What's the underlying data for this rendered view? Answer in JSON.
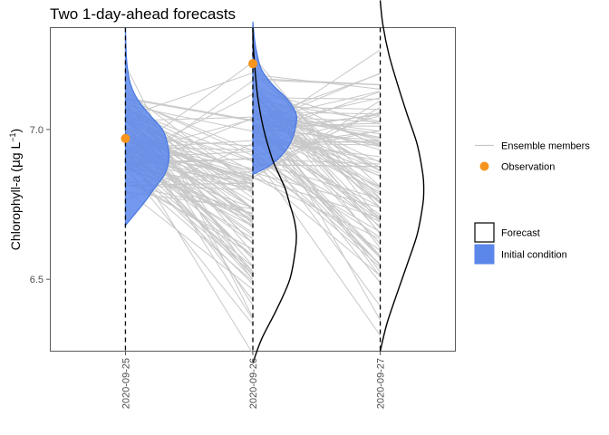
{
  "chart_data": {
    "type": "line",
    "title": "Two 1-day-ahead forecasts",
    "xlabel": "",
    "ylabel": "Chlorophyll-a (µg L⁻¹)",
    "ylabel_parts": {
      "main": "Chlorophyll-a (",
      "mu": "µ",
      "unit": "g L",
      "exp": "−1",
      "close": ")"
    },
    "x": [
      "2020-09-25",
      "2020-09-26",
      "2020-09-27"
    ],
    "ylim": [
      6.26,
      7.34
    ],
    "xlim": [
      -0.59,
      2.59
    ],
    "yticks": [
      6.5,
      7.0
    ],
    "ytick_labels": [
      "6.5",
      "7.0"
    ],
    "grid": false,
    "legend_position": "right",
    "colors": {
      "ensemble": "#c8c8c8",
      "observation": "#f7941d",
      "initial_condition": "#5b86ea",
      "initial_condition_edge": "#4a7ae0",
      "forecast": "#000000",
      "dashed": "#000000"
    },
    "legend": {
      "ensemble": "Ensemble members",
      "observation": "Observation",
      "forecast": "Forecast",
      "initial_condition": "Initial condition"
    },
    "observations": [
      {
        "x": "2020-09-25",
        "y": 6.97
      },
      {
        "x": "2020-09-26",
        "y": 7.22
      }
    ],
    "ensemble_members": {
      "count": 100,
      "day1_start": {
        "mean": 6.97,
        "sd": 0.09,
        "min": 6.68,
        "max": 7.34
      },
      "day2_forecast": {
        "mean": 6.75,
        "sd": 0.19,
        "min": 6.22,
        "max": 7.34
      },
      "day2_start": {
        "mean": 7.02,
        "sd": 0.1,
        "min": 6.84,
        "max": 7.36
      },
      "day3_forecast": {
        "mean": 6.82,
        "sd": 0.22,
        "min": 6.26,
        "max": 7.43
      }
    },
    "densities": [
      {
        "series": "Initial condition",
        "x": "2020-09-25",
        "side": "right",
        "y": [
          6.68,
          6.75,
          6.8,
          6.85,
          6.9,
          6.95,
          7.0,
          7.05,
          7.1,
          7.15,
          7.2,
          7.25,
          7.34
        ],
        "density": [
          0.0,
          0.4,
          0.65,
          0.9,
          1.0,
          0.97,
          0.85,
          0.55,
          0.28,
          0.12,
          0.05,
          0.02,
          0.0
        ]
      },
      {
        "series": "Initial condition",
        "x": "2020-09-26",
        "side": "right",
        "y": [
          6.85,
          6.88,
          6.92,
          6.96,
          7.0,
          7.05,
          7.1,
          7.15,
          7.2,
          7.25,
          7.3,
          7.36
        ],
        "density": [
          0.0,
          0.4,
          0.7,
          0.88,
          0.97,
          1.0,
          0.8,
          0.45,
          0.2,
          0.1,
          0.04,
          0.0
        ]
      },
      {
        "series": "Forecast",
        "x": "2020-09-26",
        "side": "right",
        "y": [
          6.22,
          6.3,
          6.4,
          6.5,
          6.6,
          6.65,
          6.7,
          6.75,
          6.8,
          6.85,
          6.9,
          7.0,
          7.1,
          7.2,
          7.28,
          7.34
        ],
        "density": [
          0.0,
          0.2,
          0.55,
          0.85,
          0.98,
          1.0,
          0.95,
          0.85,
          0.75,
          0.6,
          0.45,
          0.25,
          0.12,
          0.05,
          0.01,
          0.0
        ]
      },
      {
        "series": "Forecast",
        "x": "2020-09-27",
        "side": "right",
        "y": [
          6.26,
          6.35,
          6.45,
          6.55,
          6.65,
          6.75,
          6.8,
          6.85,
          6.95,
          7.05,
          7.15,
          7.25,
          7.35,
          7.43
        ],
        "density": [
          0.0,
          0.15,
          0.38,
          0.62,
          0.85,
          0.98,
          1.0,
          0.98,
          0.85,
          0.62,
          0.4,
          0.2,
          0.06,
          0.0
        ]
      }
    ]
  }
}
